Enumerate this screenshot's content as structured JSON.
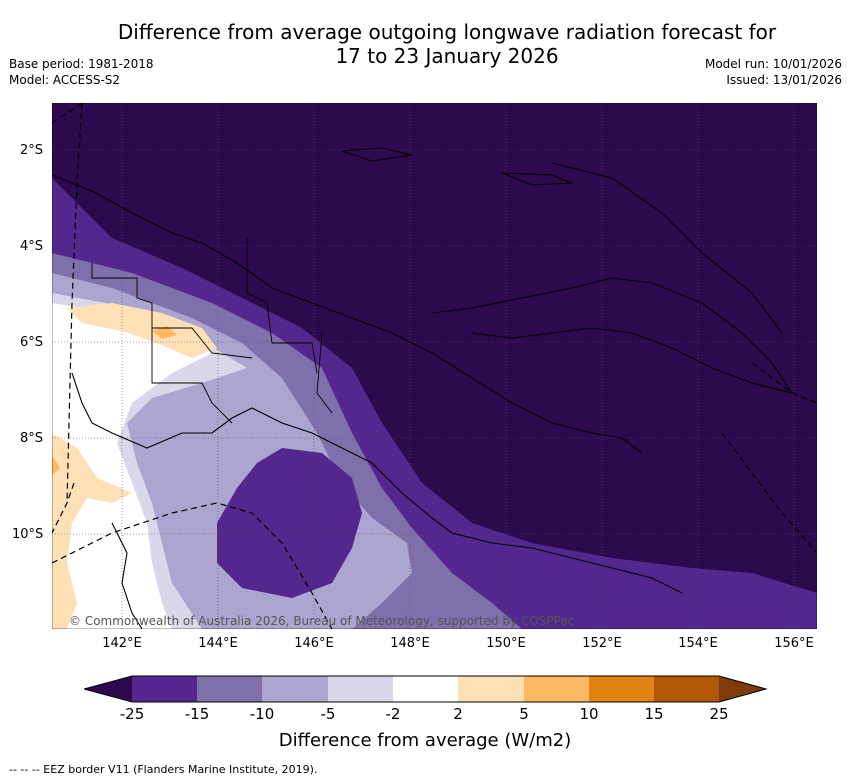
{
  "title": {
    "line1": "Difference from average outgoing longwave radiation forecast for",
    "line2": "17 to 23 January 2026"
  },
  "meta": {
    "base_period": "Base period: 1981-2018",
    "model": "Model: ACCESS-S2",
    "model_run": "Model run: 10/01/2026",
    "issued": "Issued: 13/01/2026"
  },
  "axes": {
    "latitudes": [
      "2°S",
      "4°S",
      "6°S",
      "8°S",
      "10°S"
    ],
    "longitudes": [
      "142°E",
      "144°E",
      "146°E",
      "148°E",
      "150°E",
      "152°E",
      "154°E",
      "156°E"
    ]
  },
  "copyright": "© Commonwealth of Australia 2026, Bureau of Meteorology, supported by COSPPac",
  "colorbar": {
    "ticks": [
      "-25",
      "-15",
      "-10",
      "-5",
      "-2",
      "2",
      "5",
      "10",
      "15",
      "25"
    ],
    "colors": [
      "#2d0a4e",
      "#54278f",
      "#7f6fab",
      "#aba5cf",
      "#d9d8ea",
      "#ffffff",
      "#fee0b6",
      "#fdb863",
      "#e08214",
      "#b35806",
      "#7f3b08"
    ],
    "label": "Difference from average (W/m2)"
  },
  "footnote": "--  --  -- EEZ border V11 (Flanders Marine Institute, 2019)."
}
